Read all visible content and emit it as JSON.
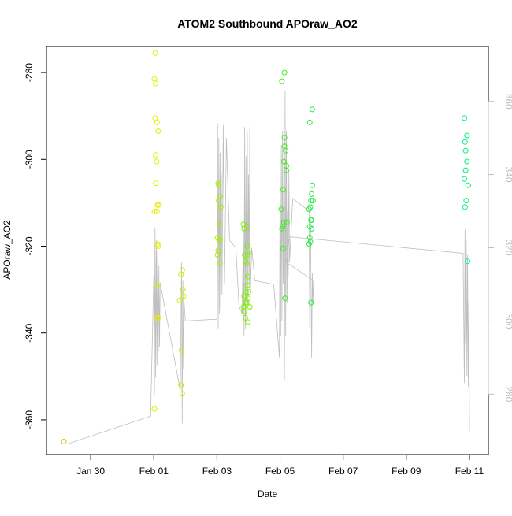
{
  "chart_data": {
    "type": "scatter",
    "title": "ATOM2 Southbound APOraw_AO2",
    "xlabel": "Date",
    "ylabel": "APOraw_AO2",
    "x_ticks": [
      "Jan 30",
      "Feb 01",
      "Feb 03",
      "Feb 05",
      "Feb 07",
      "Feb 09",
      "Feb 11"
    ],
    "x_tick_days": [
      30,
      32,
      34,
      36,
      38,
      40,
      42
    ],
    "xlim_days": [
      28.6,
      42.6
    ],
    "ylim": [
      -368,
      -274
    ],
    "y_ticks": [
      -280,
      -300,
      -320,
      -340,
      -360
    ],
    "y2_ticks": [
      280,
      300,
      320,
      340,
      360
    ],
    "y2lim": [
      263.5,
      375
    ],
    "colors": {
      "points_early": "#e8c000",
      "points_feb01": "#e0f000",
      "points_feb02": "#c8f000",
      "points_feb03": "#a8ee00",
      "points_feb04": "#80ee00",
      "points_feb05": "#40ee20",
      "points_feb06": "#20ee40",
      "points_feb11": "#00f080",
      "line": "#bebebe"
    },
    "series": [
      {
        "color_key": "points_early",
        "points": [
          [
            29.15,
            -365
          ]
        ]
      },
      {
        "color_key": "points_feb01",
        "points": [
          [
            32.05,
            -275.5
          ],
          [
            32.02,
            -281.5
          ],
          [
            32.06,
            -282.5
          ],
          [
            32.04,
            -290.5
          ],
          [
            32.1,
            -291.5
          ],
          [
            32.14,
            -293.5
          ],
          [
            32.06,
            -299
          ],
          [
            32.09,
            -300.5
          ],
          [
            32.06,
            -305.5
          ],
          [
            32.12,
            -310.5
          ],
          [
            32.16,
            -310.5
          ],
          [
            32.02,
            -312
          ],
          [
            32.1,
            -312
          ],
          [
            32.12,
            -319.5
          ],
          [
            32.14,
            -320
          ],
          [
            32.12,
            -329
          ],
          [
            32.1,
            -336.5
          ],
          [
            32.14,
            -336.5
          ],
          [
            32.02,
            -357.5
          ]
        ]
      },
      {
        "color_key": "points_feb02",
        "points": [
          [
            32.86,
            -326.5
          ],
          [
            32.9,
            -325.5
          ],
          [
            32.92,
            -330
          ],
          [
            32.94,
            -331.5
          ],
          [
            32.82,
            -332.5
          ],
          [
            32.88,
            -344
          ],
          [
            32.86,
            -352
          ],
          [
            32.9,
            -354
          ]
        ]
      },
      {
        "color_key": "points_feb03",
        "points": [
          [
            34.04,
            -305.5
          ],
          [
            34.06,
            -306
          ],
          [
            34.1,
            -308.5
          ],
          [
            34.06,
            -309.5
          ],
          [
            34.12,
            -311
          ],
          [
            34.08,
            -315
          ],
          [
            34.02,
            -318
          ],
          [
            34.06,
            -318.5
          ],
          [
            34.1,
            -318.5
          ],
          [
            34.04,
            -321
          ],
          [
            34.02,
            -322
          ],
          [
            34.1,
            -324
          ]
        ]
      },
      {
        "color_key": "points_feb04",
        "points": [
          [
            34.84,
            -315
          ],
          [
            34.86,
            -316
          ],
          [
            34.98,
            -315.5
          ],
          [
            34.96,
            -320
          ],
          [
            34.88,
            -322
          ],
          [
            34.98,
            -322
          ],
          [
            35.02,
            -321.5
          ],
          [
            34.94,
            -324
          ],
          [
            34.9,
            -323.5
          ],
          [
            34.98,
            -327
          ],
          [
            34.96,
            -329
          ],
          [
            34.92,
            -330.5
          ],
          [
            35.0,
            -330.5
          ],
          [
            34.86,
            -331.5
          ],
          [
            34.98,
            -332
          ],
          [
            34.9,
            -333
          ],
          [
            34.94,
            -333
          ],
          [
            34.84,
            -334
          ],
          [
            35.04,
            -334
          ],
          [
            34.86,
            -335
          ],
          [
            34.9,
            -336.5
          ],
          [
            34.98,
            -337.5
          ]
        ]
      },
      {
        "color_key": "points_feb05",
        "points": [
          [
            36.06,
            -282
          ],
          [
            36.14,
            -280
          ],
          [
            36.14,
            -295
          ],
          [
            36.14,
            -297
          ],
          [
            36.18,
            -298
          ],
          [
            36.12,
            -300.5
          ],
          [
            36.2,
            -301.5
          ],
          [
            36.2,
            -302.5
          ],
          [
            36.1,
            -307
          ],
          [
            36.04,
            -311.5
          ],
          [
            36.22,
            -314.5
          ],
          [
            36.12,
            -314.5
          ],
          [
            36.08,
            -315.5
          ],
          [
            36.06,
            -316
          ],
          [
            36.1,
            -320.5
          ],
          [
            36.16,
            -332
          ]
        ]
      },
      {
        "color_key": "points_feb06",
        "points": [
          [
            36.94,
            -291.5
          ],
          [
            37.02,
            -288.5
          ],
          [
            37.02,
            -306
          ],
          [
            37.0,
            -308
          ],
          [
            36.98,
            -309.5
          ],
          [
            37.04,
            -309.5
          ],
          [
            36.96,
            -311
          ],
          [
            36.92,
            -311.5
          ],
          [
            36.98,
            -314
          ],
          [
            37.0,
            -314
          ],
          [
            36.94,
            -315.5
          ],
          [
            37.0,
            -316
          ],
          [
            36.94,
            -318
          ],
          [
            36.96,
            -319
          ],
          [
            36.92,
            -319.5
          ],
          [
            36.98,
            -333
          ]
        ]
      },
      {
        "color_key": "points_feb11",
        "points": [
          [
            41.84,
            -290.5
          ],
          [
            41.92,
            -294.5
          ],
          [
            41.86,
            -296
          ],
          [
            41.88,
            -298
          ],
          [
            41.92,
            -300.5
          ],
          [
            41.88,
            -302.5
          ],
          [
            41.96,
            -306
          ],
          [
            41.84,
            -304.5
          ],
          [
            41.9,
            -309.5
          ],
          [
            41.86,
            -311
          ],
          [
            41.94,
            -323.5
          ]
        ]
      }
    ],
    "line_series": {
      "color_key": "line",
      "axis": "right",
      "points": [
        [
          29.3,
          266.5
        ],
        [
          31.9,
          274
        ],
        [
          32.0,
          312.5
        ],
        [
          32.02,
          279.5
        ],
        [
          32.04,
          325.5
        ],
        [
          32.06,
          284.5
        ],
        [
          32.08,
          322
        ],
        [
          32.1,
          288
        ],
        [
          32.12,
          319
        ],
        [
          32.14,
          291.5
        ],
        [
          32.16,
          315
        ],
        [
          32.18,
          293
        ],
        [
          32.2,
          310.5
        ],
        [
          32.84,
          281
        ],
        [
          32.88,
          316
        ],
        [
          32.9,
          272
        ],
        [
          32.92,
          311
        ],
        [
          32.94,
          287
        ],
        [
          32.96,
          305
        ],
        [
          33.0,
          300
        ],
        [
          34.0,
          300.5
        ],
        [
          34.02,
          354
        ],
        [
          34.04,
          298
        ],
        [
          34.06,
          350
        ],
        [
          34.08,
          302
        ],
        [
          34.1,
          346
        ],
        [
          34.12,
          303
        ],
        [
          34.14,
          340
        ],
        [
          34.16,
          307
        ],
        [
          34.2,
          353.5
        ],
        [
          34.24,
          310
        ],
        [
          34.3,
          350
        ],
        [
          34.4,
          322
        ],
        [
          34.6,
          320
        ],
        [
          34.7,
          304
        ],
        [
          34.8,
          302
        ],
        [
          34.84,
          325
        ],
        [
          34.86,
          296
        ],
        [
          34.88,
          353
        ],
        [
          34.9,
          298
        ],
        [
          34.92,
          345
        ],
        [
          34.94,
          300
        ],
        [
          34.96,
          352
        ],
        [
          34.98,
          305
        ],
        [
          35.0,
          340
        ],
        [
          35.02,
          310
        ],
        [
          35.04,
          353
        ],
        [
          35.06,
          308
        ],
        [
          35.1,
          320
        ],
        [
          35.2,
          311
        ],
        [
          35.8,
          310
        ],
        [
          35.98,
          290
        ],
        [
          36.0,
          340
        ],
        [
          36.02,
          296
        ],
        [
          36.04,
          348
        ],
        [
          36.06,
          300
        ],
        [
          36.08,
          352
        ],
        [
          36.1,
          310
        ],
        [
          36.12,
          330
        ],
        [
          36.14,
          284
        ],
        [
          36.16,
          363
        ],
        [
          36.18,
          296
        ],
        [
          36.2,
          352
        ],
        [
          36.22,
          305
        ],
        [
          36.24,
          330
        ],
        [
          36.26,
          312
        ],
        [
          36.28,
          341
        ],
        [
          36.3,
          316
        ],
        [
          36.4,
          333.5
        ],
        [
          36.92,
          330
        ],
        [
          36.94,
          298
        ],
        [
          36.96,
          328
        ],
        [
          36.98,
          310
        ],
        [
          37.0,
          290
        ],
        [
          37.02,
          313
        ],
        [
          37.04,
          305
        ],
        [
          37.06,
          311
        ],
        [
          36.2,
          316
        ],
        [
          36.3,
          323
        ],
        [
          41.8,
          318.5
        ],
        [
          41.84,
          283
        ],
        [
          41.86,
          325
        ],
        [
          41.88,
          294
        ],
        [
          41.9,
          322
        ],
        [
          41.92,
          285
        ],
        [
          41.94,
          318
        ],
        [
          41.96,
          282
        ],
        [
          41.98,
          305
        ],
        [
          42.0,
          270
        ]
      ]
    }
  }
}
